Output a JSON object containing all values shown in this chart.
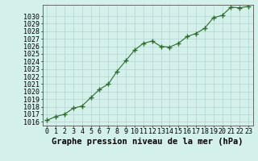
{
  "x": [
    0,
    1,
    2,
    3,
    4,
    5,
    6,
    7,
    8,
    9,
    10,
    11,
    12,
    13,
    14,
    15,
    16,
    17,
    18,
    19,
    20,
    21,
    22,
    23
  ],
  "y": [
    1016.2,
    1016.7,
    1017.0,
    1017.8,
    1018.1,
    1019.2,
    1020.3,
    1021.0,
    1022.7,
    1024.1,
    1025.5,
    1026.4,
    1026.7,
    1026.0,
    1025.9,
    1026.4,
    1027.3,
    1027.7,
    1028.4,
    1029.8,
    1030.1,
    1031.2,
    1031.1,
    1031.3
  ],
  "ylim_min": 1015.5,
  "ylim_max": 1031.5,
  "yticks": [
    1016,
    1017,
    1018,
    1019,
    1020,
    1021,
    1022,
    1023,
    1024,
    1025,
    1026,
    1027,
    1028,
    1029,
    1030
  ],
  "xticks": [
    0,
    1,
    2,
    3,
    4,
    5,
    6,
    7,
    8,
    9,
    10,
    11,
    12,
    13,
    14,
    15,
    16,
    17,
    18,
    19,
    20,
    21,
    22,
    23
  ],
  "line_color": "#2d6a2d",
  "marker": "+",
  "marker_size": 4,
  "marker_edge_width": 1.0,
  "line_width": 0.8,
  "bg_color": "#d4f0eb",
  "grid_color": "#aacfc8",
  "xlabel": "Graphe pression niveau de la mer (hPa)",
  "xlabel_fontsize": 7.5,
  "tick_fontsize": 6,
  "spine_color": "#555555",
  "xlim_min": -0.5,
  "xlim_max": 23.5
}
